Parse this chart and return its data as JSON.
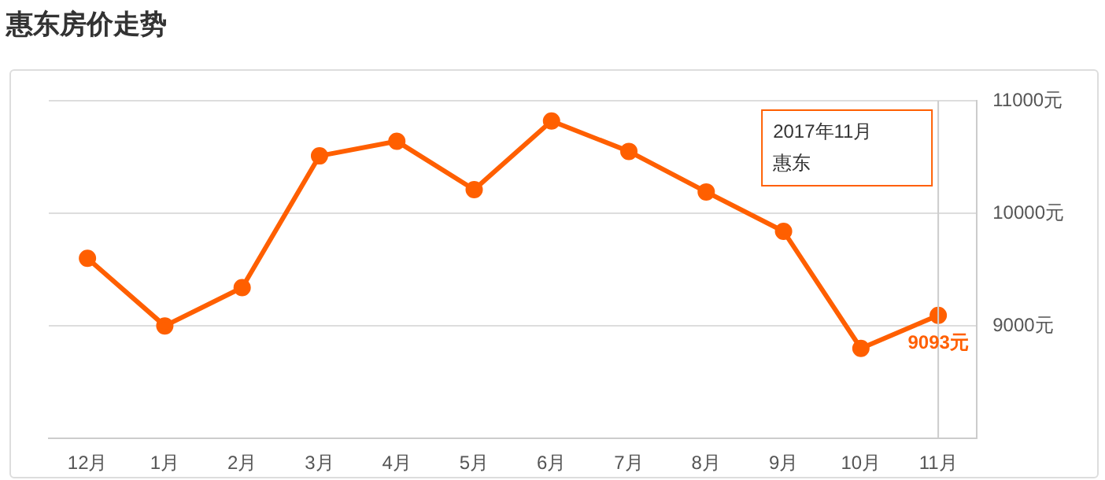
{
  "chart_data": {
    "type": "line",
    "title": "惠东房价走势",
    "categories": [
      "12月",
      "1月",
      "2月",
      "3月",
      "4月",
      "5月",
      "6月",
      "7月",
      "8月",
      "9月",
      "10月",
      "11月"
    ],
    "series": [
      {
        "name": "惠东",
        "color": "#ff5f00",
        "values": [
          9600,
          9000,
          9340,
          10510,
          10640,
          10210,
          10820,
          10550,
          10190,
          9840,
          8800,
          9093
        ],
        "value_labels": [
          null,
          null,
          null,
          null,
          null,
          null,
          null,
          null,
          null,
          null,
          null,
          "9093元"
        ]
      }
    ],
    "ylim": [
      8000,
      11000
    ],
    "yticks": [
      {
        "value": 9000,
        "label": "9000元"
      },
      {
        "value": 10000,
        "label": "10000元"
      },
      {
        "value": 11000,
        "label": "11000元"
      }
    ],
    "grid": "y",
    "marker": "circle",
    "legend": false,
    "ref_lines": [
      {
        "axis": "x",
        "value": "11月",
        "color": "#cccccc"
      }
    ],
    "annotations": [
      "2017年11月"
    ]
  }
}
